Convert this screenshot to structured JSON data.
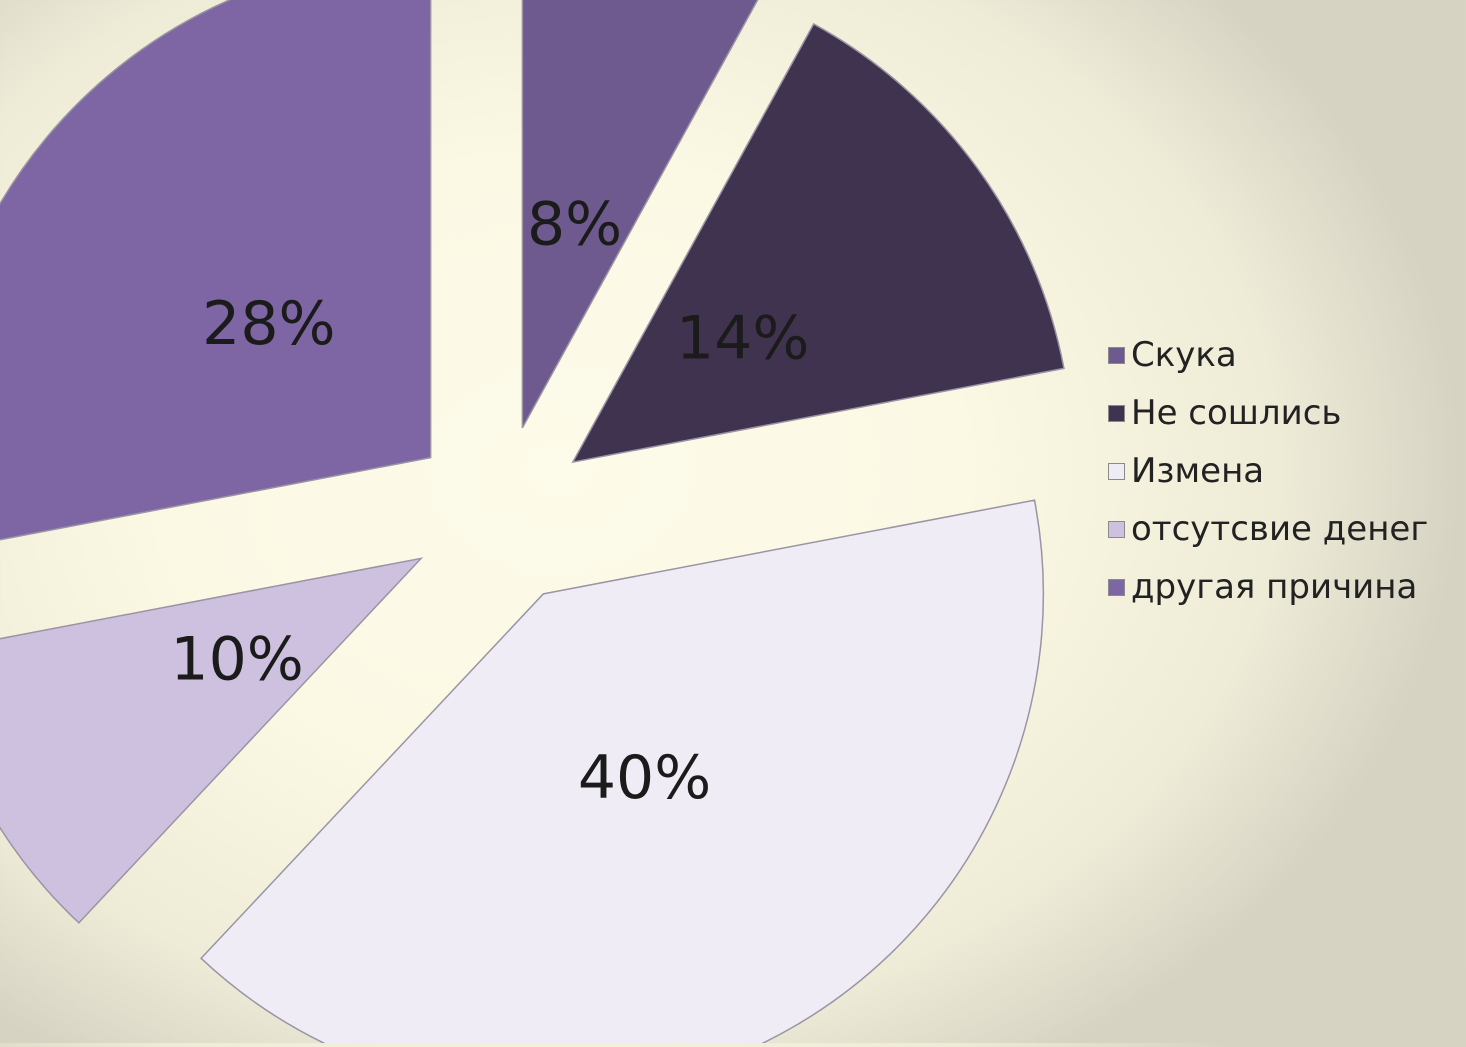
{
  "chart_data": {
    "type": "pie",
    "categories": [
      "Скука",
      "Не сошлись",
      "Измена",
      "отсутсвие денег",
      "другая причина"
    ],
    "values": [
      8,
      14,
      40,
      10,
      28
    ],
    "data_labels": [
      "8%",
      "14%",
      "40%",
      "10%",
      "28%"
    ],
    "colors": [
      "#6f5a8f",
      "#3f3350",
      "#efecf6",
      "#cdc1df",
      "#7d66a3"
    ],
    "exploded": true,
    "legend_position": "right"
  }
}
